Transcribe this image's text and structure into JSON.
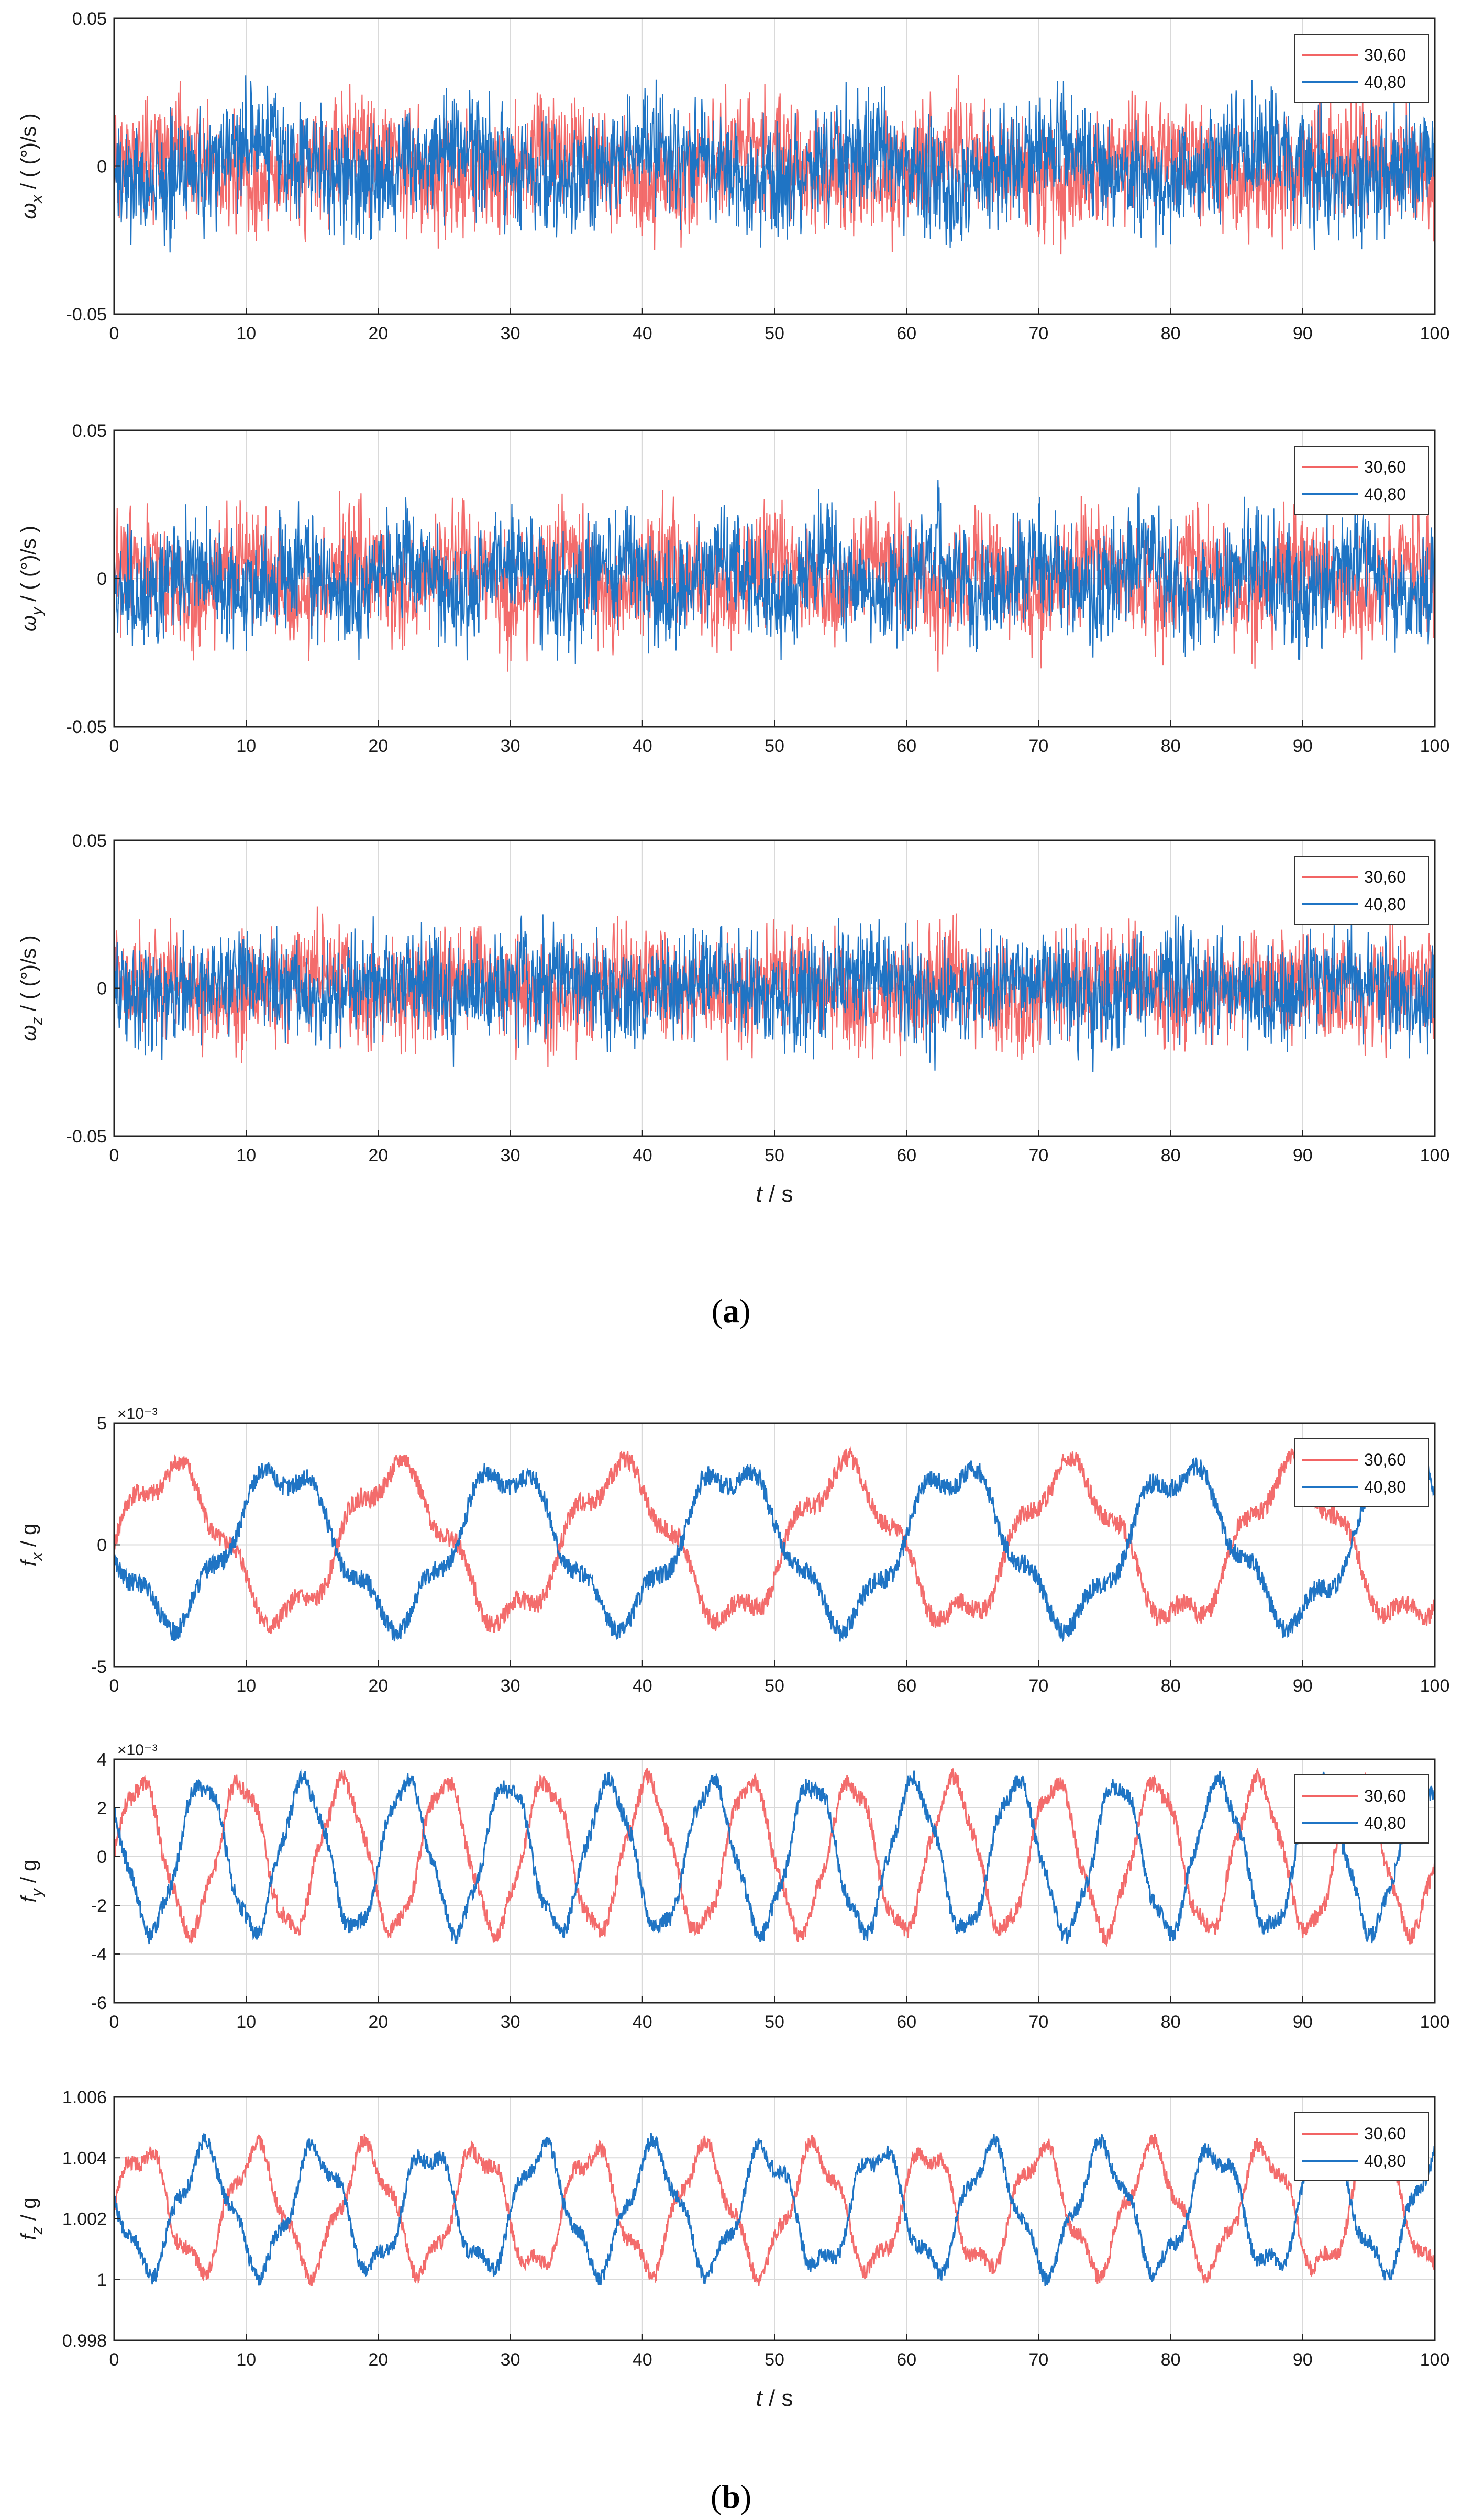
{
  "captions": {
    "a": "a",
    "b": "b"
  },
  "colors": {
    "red": "#f26464",
    "blue": "#1f74c4",
    "grid": "#d9d9d9",
    "axis": "#222222"
  },
  "chart_data": [
    {
      "type": "line",
      "id": "wx",
      "ylabel_sym": "ω",
      "ylabel_sub": "x",
      "ylabel_unit": " / ( (°)/s )",
      "xlabel": "",
      "xlim": [
        0,
        100
      ],
      "ylim": [
        -0.05,
        0.05
      ],
      "xticks": [
        0,
        10,
        20,
        30,
        40,
        50,
        60,
        70,
        80,
        90,
        100
      ],
      "yticks": [
        -0.05,
        0,
        0.05
      ],
      "ytick_labels": [
        "-0.05",
        "0",
        "0.05"
      ],
      "exponent": "",
      "signal": {
        "kind": "noise",
        "amp": 0.028,
        "period": 15,
        "mod": 0.006,
        "seed": 11
      },
      "series": [
        {
          "name": "30,60",
          "color": "#f26464",
          "phase": 0.0
        },
        {
          "name": "40,80",
          "color": "#1f74c4",
          "phase": 3.14
        }
      ]
    },
    {
      "type": "line",
      "id": "wy",
      "ylabel_sym": "ω",
      "ylabel_sub": "y",
      "ylabel_unit": " / ( (°)/s )",
      "xlabel": "",
      "xlim": [
        0,
        100
      ],
      "ylim": [
        -0.05,
        0.05
      ],
      "xticks": [
        0,
        10,
        20,
        30,
        40,
        50,
        60,
        70,
        80,
        90,
        100
      ],
      "yticks": [
        -0.05,
        0,
        0.05
      ],
      "ytick_labels": [
        "-0.05",
        "0",
        "0.05"
      ],
      "exponent": "",
      "signal": {
        "kind": "noise",
        "amp": 0.028,
        "period": 8,
        "mod": 0.007,
        "seed": 23
      },
      "series": [
        {
          "name": "30,60",
          "color": "#f26464",
          "phase": 0.0
        },
        {
          "name": "40,80",
          "color": "#1f74c4",
          "phase": 3.14
        }
      ]
    },
    {
      "type": "line",
      "id": "wz",
      "ylabel_sym": "ω",
      "ylabel_sub": "z",
      "ylabel_unit": " / ( (°)/s )",
      "xlabel": "t  / s",
      "xlim": [
        0,
        100
      ],
      "ylim": [
        -0.05,
        0.05
      ],
      "xticks": [
        0,
        10,
        20,
        30,
        40,
        50,
        60,
        70,
        80,
        90,
        100
      ],
      "yticks": [
        -0.05,
        0,
        0.05
      ],
      "ytick_labels": [
        "-0.05",
        "0",
        "0.05"
      ],
      "exponent": "",
      "signal": {
        "kind": "noise",
        "amp": 0.026,
        "period": 12,
        "mod": 0.004,
        "seed": 37
      },
      "series": [
        {
          "name": "30,60",
          "color": "#f26464",
          "phase": 0.0
        },
        {
          "name": "40,80",
          "color": "#1f74c4",
          "phase": 3.14
        }
      ]
    },
    {
      "type": "line",
      "id": "fx",
      "ylabel_sym": "f",
      "ylabel_sub": "x",
      "ylabel_unit": " / g",
      "xlabel": "",
      "xlim": [
        0,
        100
      ],
      "ylim": [
        -0.005,
        0.005
      ],
      "xticks": [
        0,
        10,
        20,
        30,
        40,
        50,
        60,
        70,
        80,
        90,
        100
      ],
      "yticks": [
        -0.005,
        0,
        0.005
      ],
      "ytick_labels": [
        "-5",
        "0",
        "5"
      ],
      "exponent": "×10⁻³",
      "signal": {
        "kind": "wave",
        "center": 0,
        "amp": 0.003,
        "period": 17,
        "harm": 0.0006,
        "hperiod": 4.2,
        "noise": 0.0004,
        "seed": 41
      },
      "series": [
        {
          "name": "30,60",
          "color": "#f26464",
          "phase": 0.0
        },
        {
          "name": "40,80",
          "color": "#1f74c4",
          "phase": 3.14
        }
      ]
    },
    {
      "type": "line",
      "id": "fy",
      "ylabel_sym": "f",
      "ylabel_sub": "y",
      "ylabel_unit": " / g",
      "xlabel": "",
      "xlim": [
        0,
        100
      ],
      "ylim": [
        -0.006,
        0.004
      ],
      "xticks": [
        0,
        10,
        20,
        30,
        40,
        50,
        60,
        70,
        80,
        90,
        100
      ],
      "yticks": [
        -0.006,
        -0.004,
        -0.002,
        0,
        0.002,
        0.004
      ],
      "ytick_labels": [
        "-6",
        "-4",
        "-2",
        "0",
        "2",
        "4"
      ],
      "exponent": "×10⁻³",
      "signal": {
        "kind": "wave",
        "center": 0,
        "amp": 0.003,
        "period": 7.7,
        "harm": 0.0003,
        "hperiod": 2.1,
        "noise": 0.00035,
        "seed": 53
      },
      "series": [
        {
          "name": "30,60",
          "color": "#f26464",
          "phase": 0.0
        },
        {
          "name": "40,80",
          "color": "#1f74c4",
          "phase": 2.4
        }
      ]
    },
    {
      "type": "line",
      "id": "fz",
      "ylabel_sym": "f",
      "ylabel_sub": "z",
      "ylabel_unit": " / g",
      "xlabel": "t  / s",
      "xlim": [
        0,
        100
      ],
      "ylim": [
        0.998,
        1.006
      ],
      "xticks": [
        0,
        10,
        20,
        30,
        40,
        50,
        60,
        70,
        80,
        90,
        100
      ],
      "yticks": [
        0.998,
        1.0,
        1.002,
        1.004,
        1.006
      ],
      "ytick_labels": [
        "0.998",
        "1",
        "1.002",
        "1.004",
        "1.006"
      ],
      "exponent": "",
      "signal": {
        "kind": "wave",
        "center": 1.0023,
        "amp": 0.0019,
        "period": 8.5,
        "harm": 0.0004,
        "hperiod": 2.6,
        "noise": 0.00025,
        "seed": 67
      },
      "series": [
        {
          "name": "30,60",
          "color": "#f26464",
          "phase": 0.0
        },
        {
          "name": "40,80",
          "color": "#1f74c4",
          "phase": 2.8
        }
      ]
    }
  ]
}
